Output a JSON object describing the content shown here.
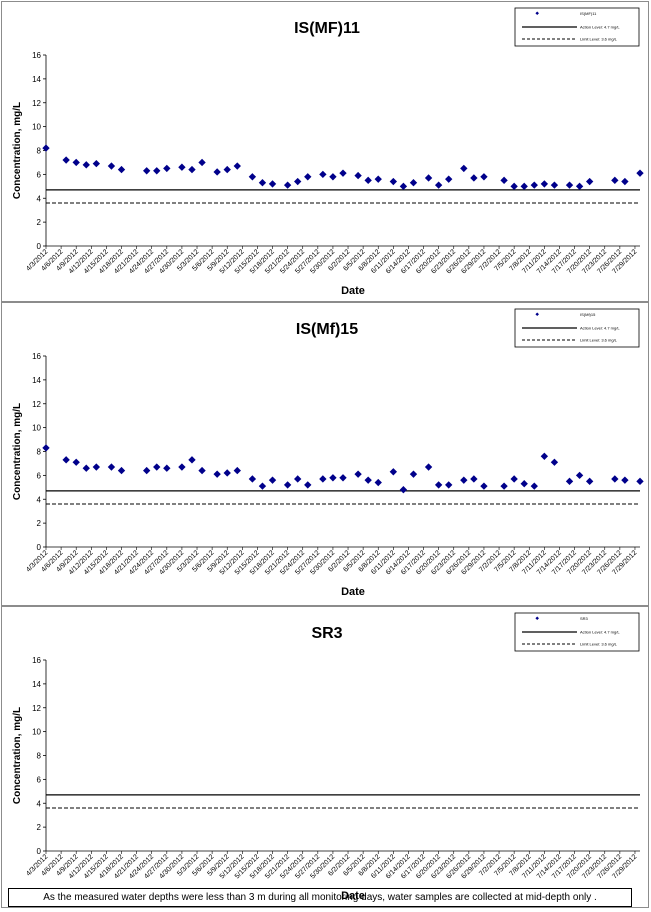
{
  "chart_data": [
    {
      "type": "scatter",
      "title": "IS(MF)11",
      "xlabel": "Date",
      "ylabel": "Concentration, mg/L",
      "ylim": [
        0,
        16
      ],
      "yticks": [
        "0",
        "2",
        "4",
        "6",
        "8",
        "10",
        "12",
        "14",
        "16"
      ],
      "xlim_days": [
        0,
        118
      ],
      "ticks": [
        "4/3/2012",
        "4/6/2012",
        "4/9/2012",
        "4/12/2012",
        "4/15/2012",
        "4/18/2012",
        "4/21/2012",
        "4/24/2012",
        "4/27/2012",
        "4/30/2012",
        "5/3/2012",
        "5/6/2012",
        "5/9/2012",
        "5/12/2012",
        "5/15/2012",
        "5/18/2012",
        "5/21/2012",
        "5/24/2012",
        "5/27/2012",
        "5/30/2012",
        "6/2/2012",
        "6/5/2012",
        "6/8/2012",
        "6/11/2012",
        "6/14/2012",
        "6/17/2012",
        "6/20/2012",
        "6/23/2012",
        "6/26/2012",
        "6/29/2012",
        "7/2/2012",
        "7/5/2012",
        "7/8/2012",
        "7/11/2012",
        "7/14/2012",
        "7/17/2012",
        "7/20/2012",
        "7/23/2012",
        "7/26/2012",
        "7/29/2012"
      ],
      "legend": {
        "placement": "top-right",
        "series": "IS(MF)11",
        "action": "Action Level: 4.7 mg/L",
        "limit": "Limit Level: 3.6 mg/L"
      },
      "action_level": 4.7,
      "limit_level": 3.6,
      "points": [
        [
          0,
          8.2
        ],
        [
          4,
          7.2
        ],
        [
          6,
          7.0
        ],
        [
          8,
          6.8
        ],
        [
          10,
          6.9
        ],
        [
          13,
          6.7
        ],
        [
          15,
          6.4
        ],
        [
          20,
          6.3
        ],
        [
          22,
          6.3
        ],
        [
          24,
          6.5
        ],
        [
          27,
          6.6
        ],
        [
          29,
          6.4
        ],
        [
          31,
          7.0
        ],
        [
          34,
          6.2
        ],
        [
          36,
          6.4
        ],
        [
          38,
          6.7
        ],
        [
          41,
          5.8
        ],
        [
          43,
          5.3
        ],
        [
          45,
          5.2
        ],
        [
          48,
          5.1
        ],
        [
          50,
          5.4
        ],
        [
          52,
          5.8
        ],
        [
          55,
          6.0
        ],
        [
          57,
          5.8
        ],
        [
          59,
          6.1
        ],
        [
          62,
          5.9
        ],
        [
          64,
          5.5
        ],
        [
          66,
          5.6
        ],
        [
          69,
          5.4
        ],
        [
          71,
          5.0
        ],
        [
          73,
          5.3
        ],
        [
          76,
          5.7
        ],
        [
          78,
          5.1
        ],
        [
          80,
          5.6
        ],
        [
          83,
          6.5
        ],
        [
          85,
          5.7
        ],
        [
          87,
          5.8
        ],
        [
          91,
          5.5
        ],
        [
          93,
          5.0
        ],
        [
          95,
          5.0
        ],
        [
          97,
          5.1
        ],
        [
          99,
          5.2
        ],
        [
          101,
          5.1
        ],
        [
          104,
          5.1
        ],
        [
          106,
          5.0
        ],
        [
          108,
          5.4
        ],
        [
          113,
          5.5
        ],
        [
          115,
          5.4
        ],
        [
          118,
          6.1
        ]
      ]
    },
    {
      "type": "scatter",
      "title": "IS(Mf)15",
      "xlabel": "Date",
      "ylabel": "Concentration, mg/L",
      "ylim": [
        0,
        16
      ],
      "yticks": [
        "0",
        "2",
        "4",
        "6",
        "8",
        "10",
        "12",
        "14",
        "16"
      ],
      "xlim_days": [
        0,
        118
      ],
      "ticks": [
        "4/3/2012",
        "4/6/2012",
        "4/9/2012",
        "4/12/2012",
        "4/15/2012",
        "4/18/2012",
        "4/21/2012",
        "4/24/2012",
        "4/27/2012",
        "4/30/2012",
        "5/3/2012",
        "5/6/2012",
        "5/9/2012",
        "5/12/2012",
        "5/15/2012",
        "5/18/2012",
        "5/21/2012",
        "5/24/2012",
        "5/27/2012",
        "5/30/2012",
        "6/2/2012",
        "6/5/2012",
        "6/8/2012",
        "6/11/2012",
        "6/14/2012",
        "6/17/2012",
        "6/20/2012",
        "6/23/2012",
        "6/26/2012",
        "6/29/2012",
        "7/2/2012",
        "7/5/2012",
        "7/8/2012",
        "7/11/2012",
        "7/14/2012",
        "7/17/2012",
        "7/20/2012",
        "7/23/2012",
        "7/26/2012",
        "7/29/2012"
      ],
      "legend": {
        "placement": "top-right",
        "series": "IS(Mf)15",
        "action": "Action Level: 4.7 mg/L",
        "limit": "Limit Level: 3.6 mg/L"
      },
      "action_level": 4.7,
      "limit_level": 3.6,
      "points": [
        [
          0,
          8.3
        ],
        [
          4,
          7.3
        ],
        [
          6,
          7.1
        ],
        [
          8,
          6.6
        ],
        [
          10,
          6.7
        ],
        [
          13,
          6.7
        ],
        [
          15,
          6.4
        ],
        [
          20,
          6.4
        ],
        [
          22,
          6.7
        ],
        [
          24,
          6.6
        ],
        [
          27,
          6.7
        ],
        [
          29,
          7.3
        ],
        [
          31,
          6.4
        ],
        [
          34,
          6.1
        ],
        [
          36,
          6.2
        ],
        [
          38,
          6.4
        ],
        [
          41,
          5.7
        ],
        [
          43,
          5.1
        ],
        [
          45,
          5.6
        ],
        [
          48,
          5.2
        ],
        [
          50,
          5.7
        ],
        [
          52,
          5.2
        ],
        [
          55,
          5.7
        ],
        [
          57,
          5.8
        ],
        [
          59,
          5.8
        ],
        [
          62,
          6.1
        ],
        [
          64,
          5.6
        ],
        [
          66,
          5.4
        ],
        [
          69,
          6.3
        ],
        [
          71,
          4.8
        ],
        [
          73,
          6.1
        ],
        [
          76,
          6.7
        ],
        [
          78,
          5.2
        ],
        [
          80,
          5.2
        ],
        [
          83,
          5.6
        ],
        [
          85,
          5.7
        ],
        [
          87,
          5.1
        ],
        [
          91,
          5.1
        ],
        [
          93,
          5.7
        ],
        [
          95,
          5.3
        ],
        [
          97,
          5.1
        ],
        [
          99,
          7.6
        ],
        [
          101,
          7.1
        ],
        [
          104,
          5.5
        ],
        [
          106,
          6.0
        ],
        [
          108,
          5.5
        ],
        [
          113,
          5.7
        ],
        [
          115,
          5.6
        ],
        [
          118,
          5.5
        ]
      ]
    },
    {
      "type": "scatter",
      "title": "SR3",
      "xlabel": "Date",
      "ylabel": "Concentration, mg/L",
      "ylim": [
        0,
        16
      ],
      "yticks": [
        "0",
        "2",
        "4",
        "6",
        "8",
        "10",
        "12",
        "14",
        "16"
      ],
      "xlim_days": [
        0,
        118
      ],
      "ticks": [
        "4/3/2012",
        "4/6/2012",
        "4/9/2012",
        "4/12/2012",
        "4/15/2012",
        "4/18/2012",
        "4/21/2012",
        "4/24/2012",
        "4/27/2012",
        "4/30/2012",
        "5/3/2012",
        "5/6/2012",
        "5/9/2012",
        "5/12/2012",
        "5/15/2012",
        "5/18/2012",
        "5/21/2012",
        "5/24/2012",
        "5/27/2012",
        "5/30/2012",
        "6/2/2012",
        "6/5/2012",
        "6/8/2012",
        "6/11/2012",
        "6/14/2012",
        "6/17/2012",
        "6/20/2012",
        "6/23/2012",
        "6/26/2012",
        "6/29/2012",
        "7/2/2012",
        "7/5/2012",
        "7/8/2012",
        "7/11/2012",
        "7/14/2012",
        "7/17/2012",
        "7/20/2012",
        "7/23/2012",
        "7/26/2012",
        "7/29/2012"
      ],
      "legend": {
        "placement": "top-right",
        "series": "SR3",
        "action": "Action Level: 4.7 mg/L",
        "limit": "Limit Level: 3.6 mg/L"
      },
      "action_level": 4.7,
      "limit_level": 3.6,
      "points": []
    }
  ],
  "note": "As the measured water depths were less than 3 m during all monitoring days, water samples are collected  at mid-depth only .",
  "colors": {
    "marker": "#00008b",
    "line": "#000000"
  }
}
